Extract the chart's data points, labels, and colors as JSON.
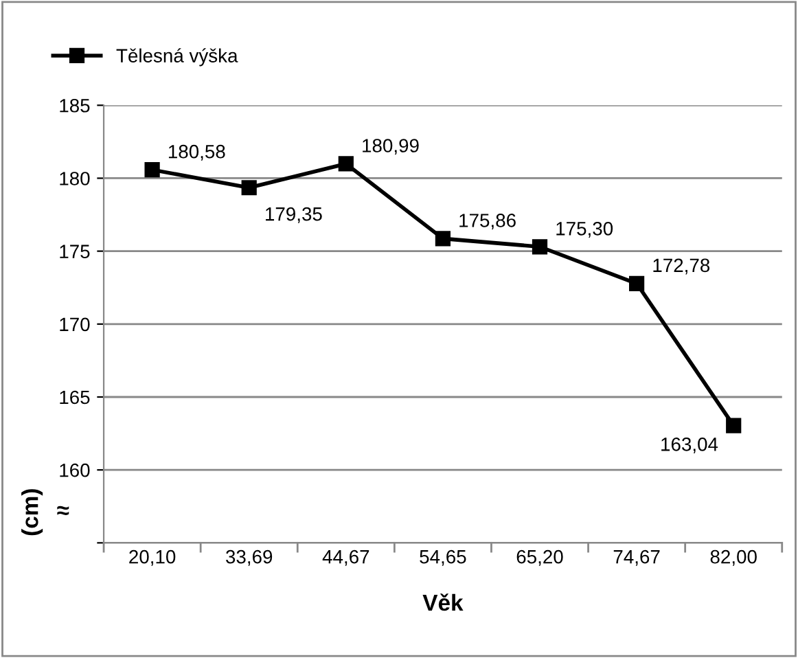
{
  "chart_data": {
    "type": "line",
    "xlabel": "Věk",
    "ylabel": "(cm)",
    "categories": [
      "20,10",
      "33,69",
      "44,67",
      "54,65",
      "65,20",
      "74,67",
      "82,00"
    ],
    "series": [
      {
        "name": "Tělesná výška",
        "color": "#000000",
        "values": [
          180.58,
          179.35,
          180.99,
          175.86,
          175.3,
          172.78,
          163.04
        ],
        "value_labels": [
          "180,58",
          "179,35",
          "180,99",
          "175,86",
          "175,30",
          "172,78",
          "163,04"
        ]
      }
    ],
    "ylim": [
      155,
      185
    ],
    "yticks": [
      {
        "value": 155,
        "label": null
      },
      160,
      165,
      170,
      175,
      180,
      185
    ],
    "grid": "y",
    "legend": "top left",
    "marker": "square",
    "line_style": "solid",
    "annotations": [
      "≈"
    ]
  }
}
